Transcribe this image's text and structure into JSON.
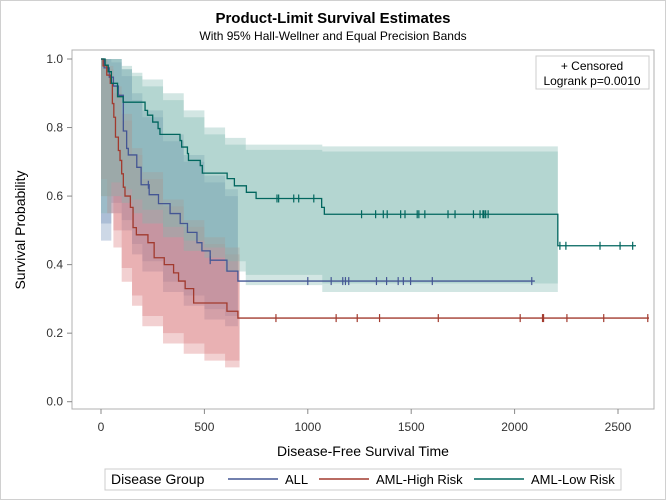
{
  "chart_data": {
    "type": "line",
    "title": "Product-Limit Survival Estimates",
    "subtitle": "With 95% Hall-Wellner and Equal Precision Bands",
    "xlabel": "Disease-Free Survival Time",
    "ylabel": "Survival Probability",
    "xlim": [
      -120,
      2700
    ],
    "ylim": [
      0,
      1.0
    ],
    "x_ticks": [
      "0",
      "500",
      "1000",
      "1500",
      "2000",
      "2500"
    ],
    "y_ticks": [
      "0.0",
      "0.2",
      "0.4",
      "0.6",
      "0.8",
      "1.0"
    ],
    "grid": false,
    "inset": {
      "censored_label": "+ Censored",
      "logrank": "Logrank p=0.0010",
      "placement": "top-right"
    },
    "legend": {
      "title": "Disease Group",
      "placement": "bottom"
    },
    "series": [
      {
        "name": "ALL",
        "color": "#445694",
        "band_color": "#6f8fb8",
        "steps": [
          [
            0,
            1.0
          ],
          [
            15,
            0.974
          ],
          [
            40,
            0.947
          ],
          [
            60,
            0.921
          ],
          [
            84,
            0.894
          ],
          [
            108,
            0.79
          ],
          [
            124,
            0.739
          ],
          [
            132,
            0.72
          ],
          [
            173,
            0.684
          ],
          [
            194,
            0.633
          ],
          [
            233,
            0.604
          ],
          [
            278,
            0.578
          ],
          [
            334,
            0.549
          ],
          [
            383,
            0.52
          ],
          [
            418,
            0.494
          ],
          [
            464,
            0.464
          ],
          [
            488,
            0.44
          ],
          [
            528,
            0.413
          ],
          [
            609,
            0.381
          ],
          [
            662,
            0.352
          ]
        ],
        "end": 2098,
        "censored": [
          [
            229,
            0.633
          ],
          [
            528,
            0.413
          ],
          [
            1000,
            0.352
          ],
          [
            1113,
            0.352
          ],
          [
            1169,
            0.352
          ],
          [
            1182,
            0.352
          ],
          [
            1198,
            0.352
          ],
          [
            1332,
            0.352
          ],
          [
            1381,
            0.352
          ],
          [
            1437,
            0.352
          ],
          [
            1462,
            0.352
          ],
          [
            1497,
            0.352
          ],
          [
            1602,
            0.352
          ],
          [
            2083,
            0.352
          ]
        ],
        "hall_wellner": {
          "t": [
            0,
            50,
            100,
            150,
            200,
            300,
            400,
            500,
            600,
            662
          ],
          "lower": [
            0.47,
            0.55,
            0.5,
            0.43,
            0.38,
            0.32,
            0.28,
            0.24,
            0.22,
            0.2
          ],
          "upper": [
            1.0,
            1.0,
            0.97,
            0.9,
            0.85,
            0.78,
            0.72,
            0.66,
            0.62,
            0.6
          ]
        },
        "equal_precision": {
          "t": [
            0,
            50,
            100,
            150,
            200,
            300,
            400,
            500,
            600,
            662
          ],
          "lower": [
            0.52,
            0.58,
            0.53,
            0.46,
            0.41,
            0.35,
            0.31,
            0.27,
            0.25,
            0.23
          ],
          "upper": [
            1.0,
            0.99,
            0.95,
            0.88,
            0.83,
            0.76,
            0.7,
            0.64,
            0.6,
            0.58
          ]
        }
      },
      {
        "name": "AML-High Risk",
        "color": "#A23A2E",
        "band_color": "#d9787a",
        "steps": [
          [
            0,
            1.0
          ],
          [
            10,
            0.98
          ],
          [
            28,
            0.953
          ],
          [
            45,
            0.929
          ],
          [
            55,
            0.87
          ],
          [
            62,
            0.83
          ],
          [
            70,
            0.772
          ],
          [
            84,
            0.733
          ],
          [
            92,
            0.704
          ],
          [
            100,
            0.665
          ],
          [
            108,
            0.626
          ],
          [
            116,
            0.6
          ],
          [
            142,
            0.567
          ],
          [
            155,
            0.508
          ],
          [
            171,
            0.487
          ],
          [
            227,
            0.464
          ],
          [
            257,
            0.42
          ],
          [
            306,
            0.4
          ],
          [
            351,
            0.376
          ],
          [
            375,
            0.352
          ],
          [
            407,
            0.33
          ],
          [
            448,
            0.288
          ],
          [
            609,
            0.264
          ],
          [
            662,
            0.244
          ]
        ],
        "end": 2650,
        "censored": [
          [
            846,
            0.244
          ],
          [
            1137,
            0.244
          ],
          [
            1239,
            0.244
          ],
          [
            1347,
            0.244
          ],
          [
            1631,
            0.244
          ],
          [
            2027,
            0.244
          ],
          [
            2135,
            0.244
          ],
          [
            2140,
            0.244
          ],
          [
            2253,
            0.244
          ],
          [
            2431,
            0.244
          ],
          [
            2644,
            0.244
          ]
        ],
        "hall_wellner": {
          "t": [
            0,
            30,
            60,
            100,
            150,
            200,
            300,
            400,
            500,
            600,
            670
          ],
          "lower": [
            0.6,
            0.55,
            0.45,
            0.35,
            0.28,
            0.22,
            0.17,
            0.14,
            0.12,
            0.1,
            0.1
          ],
          "upper": [
            1.0,
            0.98,
            0.92,
            0.84,
            0.74,
            0.67,
            0.59,
            0.53,
            0.48,
            0.45,
            0.43
          ]
        },
        "equal_precision": {
          "t": [
            0,
            30,
            60,
            100,
            150,
            200,
            300,
            400,
            500,
            600,
            670
          ],
          "lower": [
            0.65,
            0.6,
            0.5,
            0.39,
            0.31,
            0.25,
            0.2,
            0.17,
            0.14,
            0.12,
            0.12
          ],
          "upper": [
            1.0,
            0.97,
            0.9,
            0.82,
            0.72,
            0.65,
            0.57,
            0.51,
            0.46,
            0.43,
            0.41
          ]
        }
      },
      {
        "name": "AML-Low Risk",
        "color": "#01665E",
        "band_color": "#7fb8b0",
        "steps": [
          [
            0,
            1.0
          ],
          [
            20,
            0.982
          ],
          [
            35,
            0.963
          ],
          [
            50,
            0.929
          ],
          [
            80,
            0.89
          ],
          [
            107,
            0.874
          ],
          [
            213,
            0.85
          ],
          [
            225,
            0.836
          ],
          [
            250,
            0.816
          ],
          [
            276,
            0.797
          ],
          [
            285,
            0.78
          ],
          [
            382,
            0.762
          ],
          [
            390,
            0.743
          ],
          [
            418,
            0.724
          ],
          [
            423,
            0.704
          ],
          [
            480,
            0.689
          ],
          [
            490,
            0.667
          ],
          [
            610,
            0.651
          ],
          [
            645,
            0.63
          ],
          [
            703,
            0.611
          ],
          [
            750,
            0.593
          ],
          [
            1067,
            0.567
          ],
          [
            1080,
            0.547
          ],
          [
            2209,
            0.455
          ]
        ],
        "end": 2587,
        "censored": [
          [
            851,
            0.593
          ],
          [
            859,
            0.593
          ],
          [
            932,
            0.593
          ],
          [
            956,
            0.593
          ],
          [
            1029,
            0.593
          ],
          [
            1260,
            0.547
          ],
          [
            1328,
            0.547
          ],
          [
            1365,
            0.547
          ],
          [
            1384,
            0.547
          ],
          [
            1449,
            0.547
          ],
          [
            1470,
            0.547
          ],
          [
            1529,
            0.547
          ],
          [
            1537,
            0.547
          ],
          [
            1566,
            0.547
          ],
          [
            1678,
            0.547
          ],
          [
            1712,
            0.547
          ],
          [
            1801,
            0.547
          ],
          [
            1833,
            0.547
          ],
          [
            1847,
            0.547
          ],
          [
            1852,
            0.547
          ],
          [
            1860,
            0.547
          ],
          [
            1872,
            0.547
          ],
          [
            2219,
            0.455
          ],
          [
            2248,
            0.455
          ],
          [
            2413,
            0.455
          ],
          [
            2510,
            0.455
          ],
          [
            2571,
            0.455
          ]
        ],
        "hall_wellner": {
          "t": [
            0,
            50,
            100,
            150,
            200,
            300,
            400,
            500,
            600,
            700,
            1070,
            2209
          ],
          "lower": [
            0.55,
            0.6,
            0.58,
            0.55,
            0.52,
            0.48,
            0.44,
            0.42,
            0.38,
            0.34,
            0.32,
            0.32
          ],
          "upper": [
            1.0,
            1.0,
            0.98,
            0.96,
            0.94,
            0.9,
            0.85,
            0.8,
            0.77,
            0.75,
            0.745,
            0.745
          ]
        },
        "equal_precision": {
          "t": [
            0,
            50,
            100,
            150,
            200,
            300,
            400,
            500,
            600,
            700,
            1070,
            2209
          ],
          "lower": [
            0.6,
            0.64,
            0.62,
            0.59,
            0.56,
            0.51,
            0.47,
            0.45,
            0.41,
            0.37,
            0.345,
            0.345
          ],
          "upper": [
            1.0,
            1.0,
            0.97,
            0.95,
            0.92,
            0.88,
            0.83,
            0.78,
            0.75,
            0.735,
            0.73,
            0.73
          ]
        }
      }
    ]
  }
}
